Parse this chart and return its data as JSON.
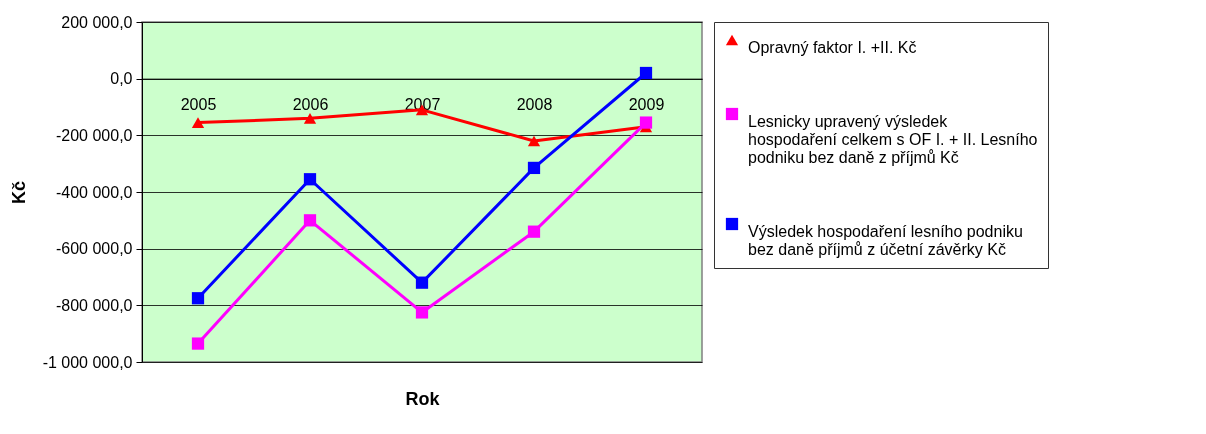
{
  "chart_data": {
    "type": "line",
    "xlabel": "Rok",
    "ylabel": "Kč",
    "categories": [
      "2005",
      "2006",
      "2007",
      "2008",
      "2009"
    ],
    "series": [
      {
        "name": "Opravný faktor I. +II. Kč",
        "color": "#ff0000",
        "marker": "triangle",
        "values": [
          -155000,
          -140000,
          -110000,
          -220000,
          -170000
        ]
      },
      {
        "name": "Lesnicky upravený výsledek hospodaření celkem s OF I. + II. Lesního podniku bez daně z příjmů Kč",
        "color": "#ff00ff",
        "marker": "square",
        "values": [
          -935000,
          -500000,
          -825000,
          -540000,
          -155000
        ]
      },
      {
        "name": "Výsledek hospodaření lesního podniku bez daně příjmů z účetní závěrky Kč",
        "color": "#0000ff",
        "marker": "square",
        "values": [
          -775000,
          -355000,
          -720000,
          -315000,
          20000
        ]
      }
    ],
    "ylim": [
      -1000000,
      200000
    ],
    "yticks": [
      {
        "value": -1000000,
        "label": "-1 000 000,0"
      },
      {
        "value": -800000,
        "label": "-800 000,0"
      },
      {
        "value": -600000,
        "label": "-600 000,0"
      },
      {
        "value": -400000,
        "label": "-400 000,0"
      },
      {
        "value": -200000,
        "label": "-200 000,0"
      },
      {
        "value": 0,
        "label": "0,0"
      },
      {
        "value": 200000,
        "label": "200 000,0"
      }
    ],
    "grid": "y",
    "legend": "right"
  }
}
